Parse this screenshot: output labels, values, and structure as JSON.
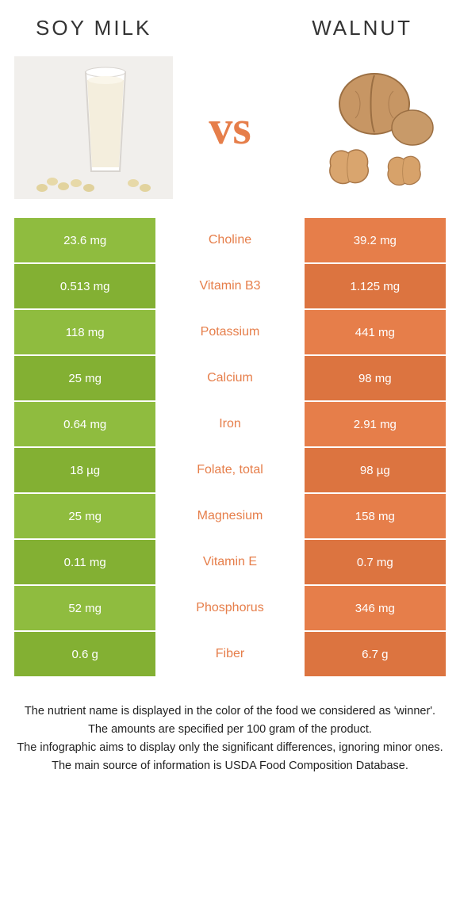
{
  "colors": {
    "left": "#8fbc3f",
    "right": "#e67e4a",
    "vs": "#e67e4a",
    "left_strong": "#6f9c2b",
    "right_strong": "#d86a34"
  },
  "header": {
    "left_title": "Soy milk",
    "right_title": "Walnut",
    "vs_label": "vs"
  },
  "rows": [
    {
      "nutrient": "Choline",
      "left": "23.6 mg",
      "right": "39.2 mg",
      "winner": "right"
    },
    {
      "nutrient": "Vitamin B3",
      "left": "0.513 mg",
      "right": "1.125 mg",
      "winner": "right"
    },
    {
      "nutrient": "Potassium",
      "left": "118 mg",
      "right": "441 mg",
      "winner": "right"
    },
    {
      "nutrient": "Calcium",
      "left": "25 mg",
      "right": "98 mg",
      "winner": "right"
    },
    {
      "nutrient": "Iron",
      "left": "0.64 mg",
      "right": "2.91 mg",
      "winner": "right"
    },
    {
      "nutrient": "Folate, total",
      "left": "18 µg",
      "right": "98 µg",
      "winner": "right"
    },
    {
      "nutrient": "Magnesium",
      "left": "25 mg",
      "right": "158 mg",
      "winner": "right"
    },
    {
      "nutrient": "Vitamin E",
      "left": "0.11 mg",
      "right": "0.7 mg",
      "winner": "right"
    },
    {
      "nutrient": "Phosphorus",
      "left": "52 mg",
      "right": "346 mg",
      "winner": "right"
    },
    {
      "nutrient": "Fiber",
      "left": "0.6 g",
      "right": "6.7 g",
      "winner": "right"
    }
  ],
  "footnotes": [
    "The nutrient name is displayed in the color of the food we considered as 'winner'.",
    "The amounts are specified per 100 gram of the product.",
    "The infographic aims to display only the significant differences, ignoring minor ones.",
    "The main source of information is USDA Food Composition Database."
  ]
}
